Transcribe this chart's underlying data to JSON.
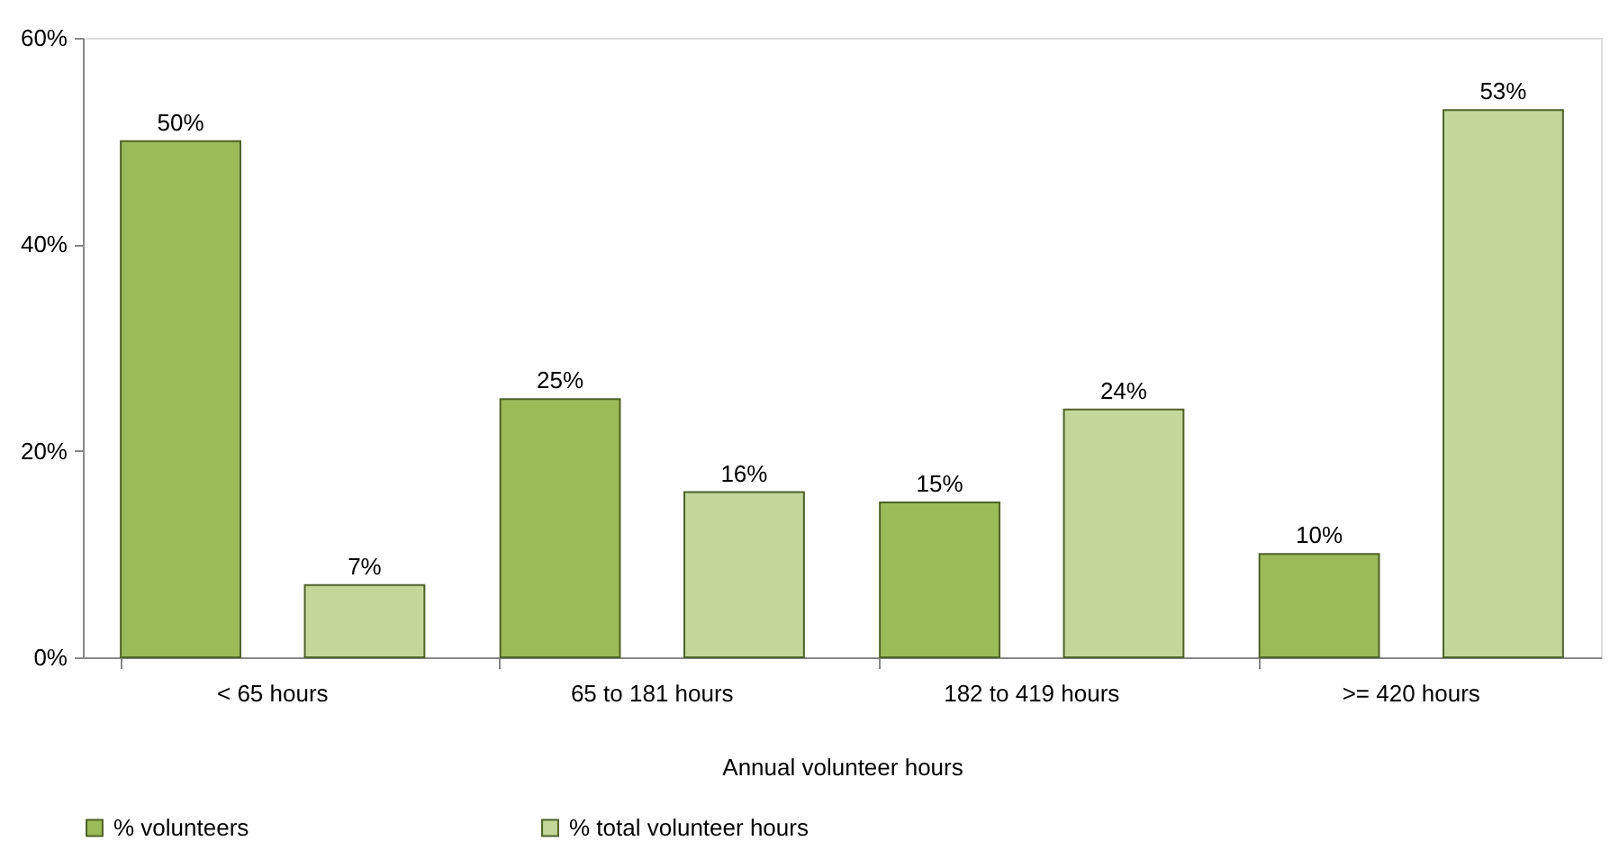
{
  "chart_data": {
    "type": "bar",
    "xlabel": "Annual volunteer hours",
    "categories": [
      "< 65 hours",
      "65 to 181 hours",
      "182 to 419 hours",
      ">= 420 hours"
    ],
    "series": [
      {
        "name": "% volunteers",
        "color": "#9bbb59",
        "values": [
          50,
          25,
          15,
          10
        ],
        "value_labels": [
          "50%",
          "25%",
          "15%",
          "10%"
        ]
      },
      {
        "name": "% total volunteer hours",
        "color": "#c4d79b",
        "values": [
          7,
          16,
          24,
          53
        ],
        "value_labels": [
          "7%",
          "16%",
          "24%",
          "53%"
        ]
      }
    ],
    "ylim": [
      0,
      60
    ],
    "yticks": [
      {
        "value": 0,
        "label": "0%"
      },
      {
        "value": 20,
        "label": "20%"
      },
      {
        "value": 40,
        "label": "40%"
      },
      {
        "value": 60,
        "label": "60%"
      }
    ],
    "grid": false,
    "legend": "bottom"
  }
}
